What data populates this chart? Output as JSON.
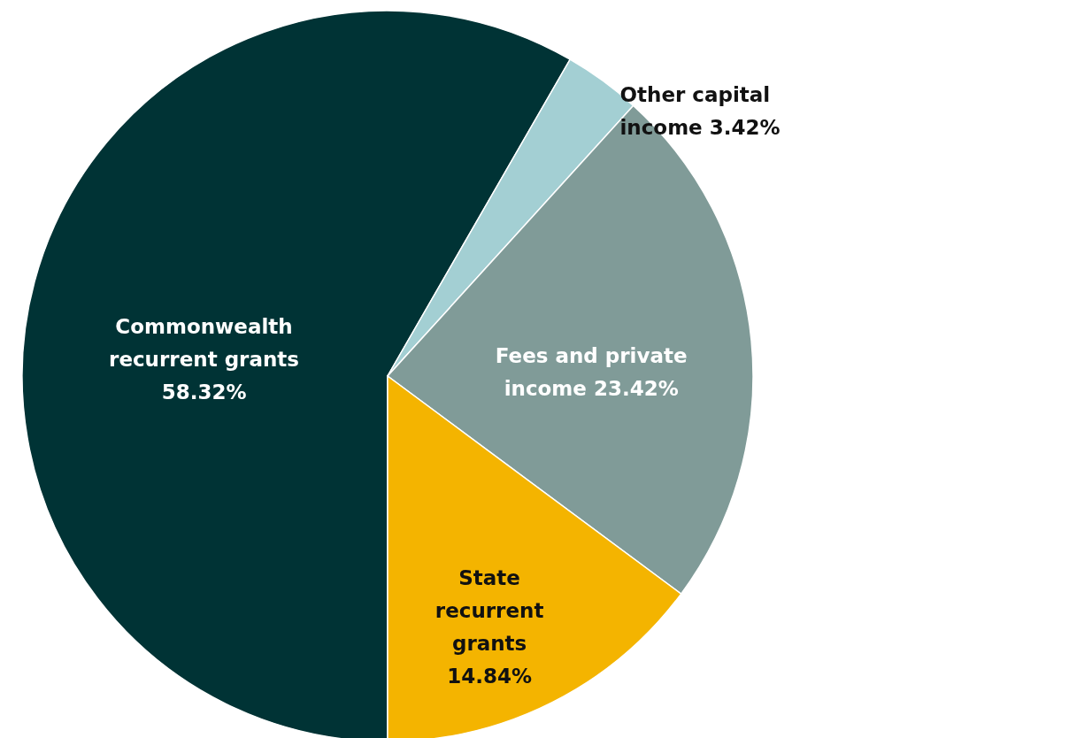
{
  "chart_data": {
    "type": "pie",
    "categories": [
      "Commonwealth recurrent grants",
      "Other capital income",
      "Fees and private income",
      "State recurrent grants"
    ],
    "values": [
      58.32,
      3.42,
      23.42,
      14.84
    ],
    "value_labels": [
      "58.32%",
      "3.42%",
      "23.42%",
      "14.84%"
    ],
    "colors": [
      "#003335",
      "#a3cfd3",
      "#809b98",
      "#f4b400"
    ]
  }
}
